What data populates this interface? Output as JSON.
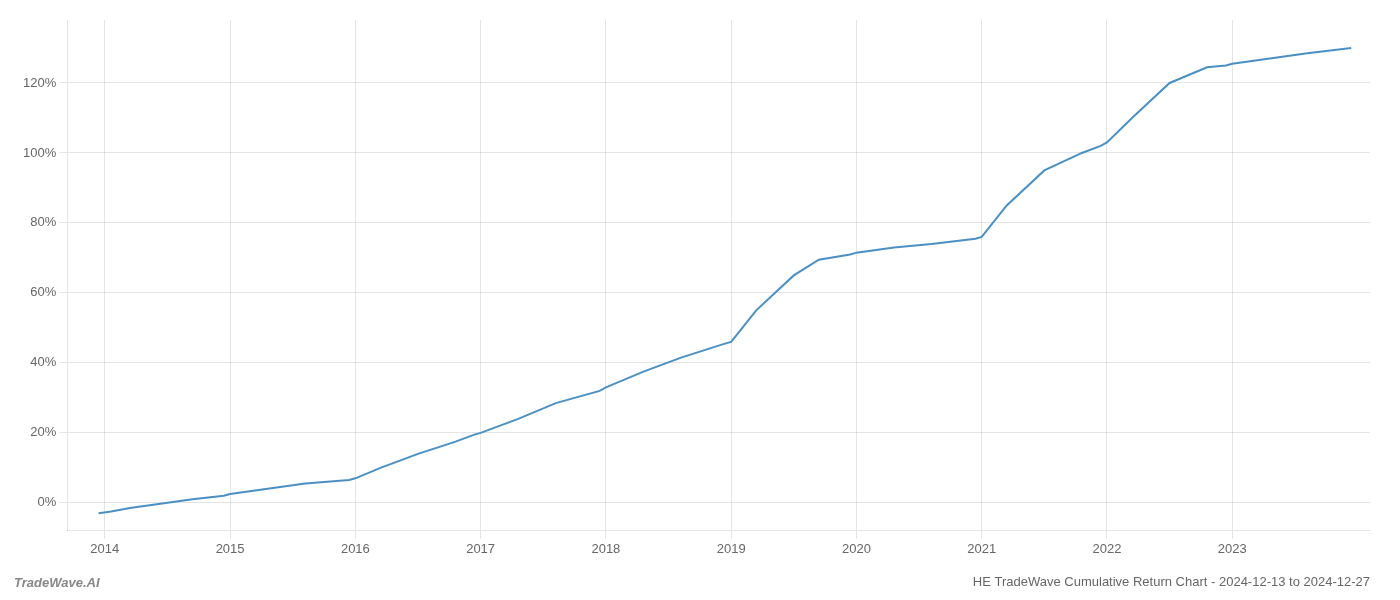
{
  "chart_data": {
    "type": "line",
    "title": "HE TradeWave Cumulative Return Chart - 2024-12-13 to 2024-12-27",
    "annotations": [
      "TradeWave.AI"
    ],
    "color": "#4a90c4",
    "x": [
      2013.95,
      2014.05,
      2014.2,
      2014.4,
      2014.7,
      2014.95,
      2015.0,
      2015.1,
      2015.3,
      2015.6,
      2015.95,
      2016.0,
      2016.2,
      2016.5,
      2016.8,
      2016.95,
      2017.0,
      2017.3,
      2017.6,
      2017.95,
      2018.0,
      2018.3,
      2018.6,
      2018.95,
      2019.0,
      2019.2,
      2019.5,
      2019.7,
      2019.95,
      2020.0,
      2020.1,
      2020.3,
      2020.6,
      2020.95,
      2021.0,
      2021.2,
      2021.5,
      2021.8,
      2021.95,
      2022.0,
      2022.2,
      2022.5,
      2022.8,
      2022.95,
      2023.0,
      2023.3,
      2023.6,
      2023.95
    ],
    "values": [
      -0.03,
      -0.025,
      -0.015,
      -0.005,
      0.01,
      0.02,
      0.025,
      0.03,
      0.04,
      0.055,
      0.065,
      0.07,
      0.1,
      0.14,
      0.175,
      0.195,
      0.2,
      0.24,
      0.285,
      0.32,
      0.33,
      0.375,
      0.415,
      0.455,
      0.46,
      0.55,
      0.65,
      0.695,
      0.71,
      0.715,
      0.72,
      0.73,
      0.74,
      0.755,
      0.76,
      0.85,
      0.95,
      1.0,
      1.02,
      1.03,
      1.1,
      1.2,
      1.245,
      1.25,
      1.255,
      1.27,
      1.285,
      1.3
    ],
    "xlim": [
      2013.7,
      2024.1
    ],
    "xticks": [
      2014,
      2015,
      2016,
      2017,
      2018,
      2019,
      2020,
      2021,
      2022,
      2023
    ],
    "ylim": [
      -0.08,
      1.38
    ],
    "yticks": [
      {
        "value": 0.0,
        "label": "0%"
      },
      {
        "value": 0.2,
        "label": "20%"
      },
      {
        "value": 0.4,
        "label": "40%"
      },
      {
        "value": 0.6,
        "label": "60%"
      },
      {
        "value": 0.8,
        "label": "80%"
      },
      {
        "value": 1.0,
        "label": "100%"
      },
      {
        "value": 1.2,
        "label": "120%"
      }
    ],
    "grid": true
  }
}
